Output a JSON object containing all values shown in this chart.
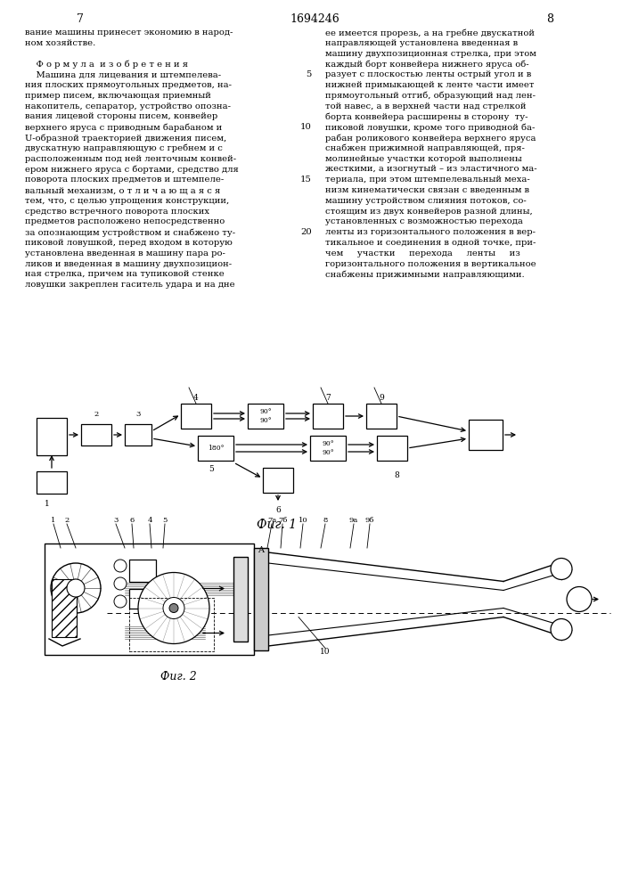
{
  "page_number_left": "7",
  "page_number_center": "1694246",
  "page_number_right": "8",
  "left_column_text": [
    "вание машины принесет экономию в народ-",
    "ном хозяйстве.",
    "",
    "    Ф о р м у л а  и з о б р е т е н и я",
    "    Машина для лицевания и штемпелева-",
    "ния плоских прямоугольных предметов, на-",
    "пример писем, включающая приемный",
    "накопитель, сепаратор, устройство опозна-",
    "вания лицевой стороны писем, конвейер",
    "верхнего яруса с приводным барабаном и",
    "U-образной траекторией движения писем,",
    "двускатную направляющую с гребнем и с",
    "расположенным под ней ленточным конвей-",
    "ером нижнего яруса с бортами, средство для",
    "поворота плоских предметов и штемпеле-",
    "вальный механизм, о т л и ч а ю щ а я с я",
    "тем, что, с целью упрощения конструкции,",
    "средство встречного поворота плоских",
    "предметов расположено непосредственно",
    "за опознающим устройством и снабжено ту-",
    "пиковой ловушкой, перед входом в которую",
    "установлена введенная в машину пара ро-",
    "ликов и введенная в машину двухпозицион-",
    "ная стрелка, причем на тупиковой стенке",
    "ловушки закреплен гаситель удара и на дне"
  ],
  "right_column_text": [
    "ее имеется прорезь, а на гребне двускатной",
    "направляющей установлена введенная в",
    "машину двухпозиционная стрелка, при этом",
    "каждый борт конвейера нижнего яруса об-",
    "разует с плоскостью ленты острый угол и в",
    "нижней примыкающей к ленте части имеет",
    "прямоугольный отгиб, образующий над лен-",
    "той навес, а в верхней части над стрелкой",
    "борта конвейера расширены в сторону  ту-",
    "пиковой ловушки, кроме того приводной ба-",
    "рабан роликового конвейера верхнего яруса",
    "снабжен прижимной направляющей, пря-",
    "молинейные участки которой выполнены",
    "жесткими, а изогнутый – из эластичного ма-",
    "териала, при этом штемпелевальный меха-",
    "низм кинематически связан с введенным в",
    "машину устройством слияния потоков, со-",
    "стоящим из двух конвейеров разной длины,",
    "установленных с возможностью перехода",
    "ленты из горизонтального положения в вер-",
    "тикальное и соединения в одной точке, при-",
    "чем     участки     перехода     ленты     из",
    "горизонтального положения в вертикальное",
    "снабжены прижимными направляющими."
  ],
  "background_color": "#ffffff",
  "text_color": "#000000",
  "font_size_body": 7.2,
  "font_size_header": 9
}
